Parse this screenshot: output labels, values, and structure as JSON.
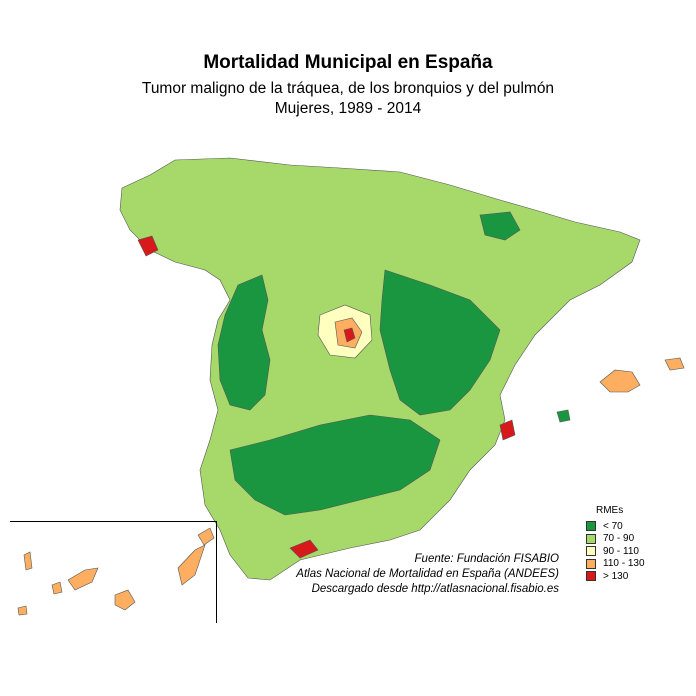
{
  "header": {
    "title": "Mortalidad Municipal en España",
    "subtitle": "Tumor maligno de la tráquea, de los bronquios y del pulmón",
    "subtitle2": "Mujeres, 1989 - 2014"
  },
  "legend": {
    "title": "RMEs",
    "items": [
      {
        "label": "< 70",
        "color": "#1a9641"
      },
      {
        "label": "70 - 90",
        "color": "#a6d96a"
      },
      {
        "label": "90 - 110",
        "color": "#ffffbf"
      },
      {
        "label": "110 - 130",
        "color": "#fdae61"
      },
      {
        "label": "> 130",
        "color": "#d7191c"
      }
    ]
  },
  "source": {
    "line1": "Fuente: Fundación FISABIO",
    "line2": "Atlas Nacional de Mortalidad en España (ANDEES)",
    "line3": "Descargado desde http://atlasnacional.fisabio.es"
  },
  "map": {
    "border_color": "#555555",
    "regions": [
      {
        "name": "peninsula",
        "color": "#a6d96a"
      },
      {
        "name": "low-mortality-west",
        "color": "#1a9641"
      },
      {
        "name": "low-mortality-east",
        "color": "#1a9641"
      },
      {
        "name": "low-mortality-south",
        "color": "#1a9641"
      },
      {
        "name": "madrid",
        "color": "#ffffbf"
      },
      {
        "name": "madrid-high",
        "color": "#fdae61"
      },
      {
        "name": "madrid-core",
        "color": "#d7191c"
      },
      {
        "name": "galicia-coast-high",
        "color": "#d7191c"
      },
      {
        "name": "malaga-high",
        "color": "#d7191c"
      },
      {
        "name": "valencia-high",
        "color": "#d7191c"
      },
      {
        "name": "balearic",
        "color": "#fdae61"
      },
      {
        "name": "canary",
        "color": "#fdae61"
      }
    ]
  }
}
